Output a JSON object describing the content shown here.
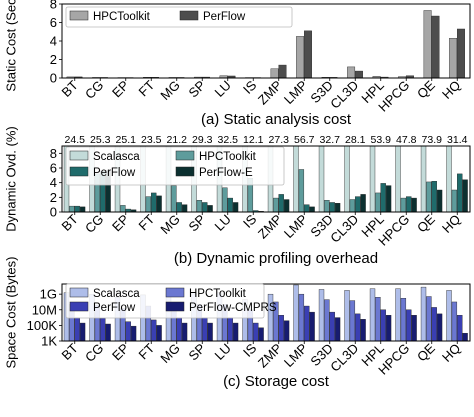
{
  "chart_data": [
    {
      "type": "bar",
      "title": "",
      "caption": "(a) Static analysis cost",
      "xlabel": "",
      "ylabel": "Static Cost (Sec.)",
      "ylim": [
        0,
        8
      ],
      "yticks": [
        0,
        2,
        4,
        6,
        8
      ],
      "grid": false,
      "legend_position": "top-left",
      "categories": [
        "BT",
        "CG",
        "EP",
        "FT",
        "MG",
        "SP",
        "LU",
        "IS",
        "ZMP",
        "LMP",
        "S3D",
        "CL3D",
        "HPL",
        "HPCG",
        "QE",
        "HQ"
      ],
      "series": [
        {
          "name": "HPCToolkit",
          "color": "#a6a6a6",
          "values": [
            0.12,
            0.06,
            0.05,
            0.08,
            0.06,
            0.1,
            0.25,
            0.05,
            1.0,
            4.5,
            0.08,
            1.2,
            0.18,
            0.15,
            7.3,
            4.3
          ]
        },
        {
          "name": "PerFlow",
          "color": "#4d4d4d",
          "values": [
            0.12,
            0.06,
            0.05,
            0.08,
            0.06,
            0.1,
            0.22,
            0.05,
            1.4,
            5.1,
            0.07,
            0.75,
            0.1,
            0.25,
            6.7,
            5.3
          ]
        }
      ]
    },
    {
      "type": "bar",
      "title": "",
      "caption": "(b) Dynamic profiling overhead",
      "xlabel": "",
      "ylabel": "Dynamic Ovd. (%)",
      "ylim": [
        0,
        9
      ],
      "yticks": [
        0,
        2,
        4,
        6,
        8
      ],
      "grid": false,
      "legend_position": "top-left",
      "categories": [
        "BT",
        "CG",
        "EP",
        "FT",
        "MG",
        "SP",
        "LU",
        "IS",
        "ZMP",
        "LMP",
        "S3D",
        "CL3D",
        "HPL",
        "HPCG",
        "QE",
        "HQ"
      ],
      "top_labels": [
        "24.5",
        "25.3",
        "25.1",
        "23.5",
        "21.2",
        "29.3",
        "32.5",
        "12.1",
        "27.3",
        "56.7",
        "32.7",
        "28.1",
        "53.9",
        "47.8",
        "73.9",
        "31.4"
      ],
      "series": [
        {
          "name": "Scalasca",
          "color": "#c3dbd9",
          "values": [
            9,
            9,
            9,
            9,
            9,
            9,
            9,
            9,
            9,
            9,
            9,
            9,
            9,
            9,
            9,
            9
          ]
        },
        {
          "name": "HPCToolkit",
          "color": "#5e9c9c",
          "values": [
            0.8,
            5.2,
            0.9,
            2.1,
            3.6,
            1.6,
            3.3,
            4.6,
            1.9,
            5.8,
            1.6,
            1.7,
            2.6,
            1.9,
            4.1,
            3.0
          ]
        },
        {
          "name": "PerFlow",
          "color": "#1f6b6b",
          "values": [
            0.8,
            5.6,
            0.4,
            2.6,
            1.3,
            1.3,
            1.9,
            0.2,
            2.4,
            1.0,
            1.3,
            2.1,
            3.9,
            2.1,
            4.2,
            5.2
          ]
        },
        {
          "name": "PerFlow-E",
          "color": "#0c3030",
          "values": [
            0.7,
            5.7,
            0.3,
            2.2,
            1.0,
            0.9,
            1.3,
            0.1,
            1.7,
            0.7,
            1.2,
            2.4,
            3.6,
            1.9,
            3.0,
            4.4
          ]
        }
      ]
    },
    {
      "type": "bar",
      "title": "",
      "caption": "(c) Storage cost",
      "xlabel": "",
      "ylabel": "Space Cost (Bytes)",
      "yscale": "log",
      "ylim": [
        1000,
        20000000000
      ],
      "yticks": [
        1000,
        100000,
        10000000,
        1000000000
      ],
      "ytick_labels": [
        "1K",
        "100K",
        "10M",
        "1G"
      ],
      "grid": false,
      "legend_position": "top-left",
      "categories": [
        "BT",
        "CG",
        "EP",
        "FT",
        "MG",
        "SP",
        "LU",
        "IS",
        "ZMP",
        "LMP",
        "S3D",
        "CL3D",
        "HPL",
        "HPCG",
        "QE",
        "HQ"
      ],
      "series": [
        {
          "name": "Scalasca",
          "color": "#aebde9",
          "values": [
            1500000000,
            1000000000,
            400000000,
            800000000,
            1000000000,
            1500000000,
            1500000000,
            200000000,
            1000000000,
            15000000000,
            4000000000,
            3000000000,
            5000000000,
            5000000000,
            8000000000,
            3000000000
          ]
        },
        {
          "name": "HPCToolkit",
          "color": "#6b78d1",
          "values": [
            50000000,
            40000000,
            15000000,
            30000000,
            40000000,
            50000000,
            50000000,
            10000000,
            100000000,
            1000000000,
            200000000,
            150000000,
            400000000,
            300000000,
            500000000,
            100000000
          ]
        },
        {
          "name": "PerFlow",
          "color": "#3a3fb3",
          "values": [
            1000000,
            800000,
            300000,
            500000,
            1000000,
            1000000,
            1000000,
            200000,
            2000000,
            30000000,
            5000000,
            3000000,
            10000000,
            10000000,
            20000000,
            2000000
          ]
        },
        {
          "name": "PerFlow-CMPRS",
          "color": "#171c70",
          "values": [
            200000,
            150000,
            80000,
            100000,
            200000,
            200000,
            200000,
            50000,
            400000,
            5000000,
            1000000,
            600000,
            2000000,
            2000000,
            3000000,
            10000
          ]
        }
      ]
    }
  ]
}
